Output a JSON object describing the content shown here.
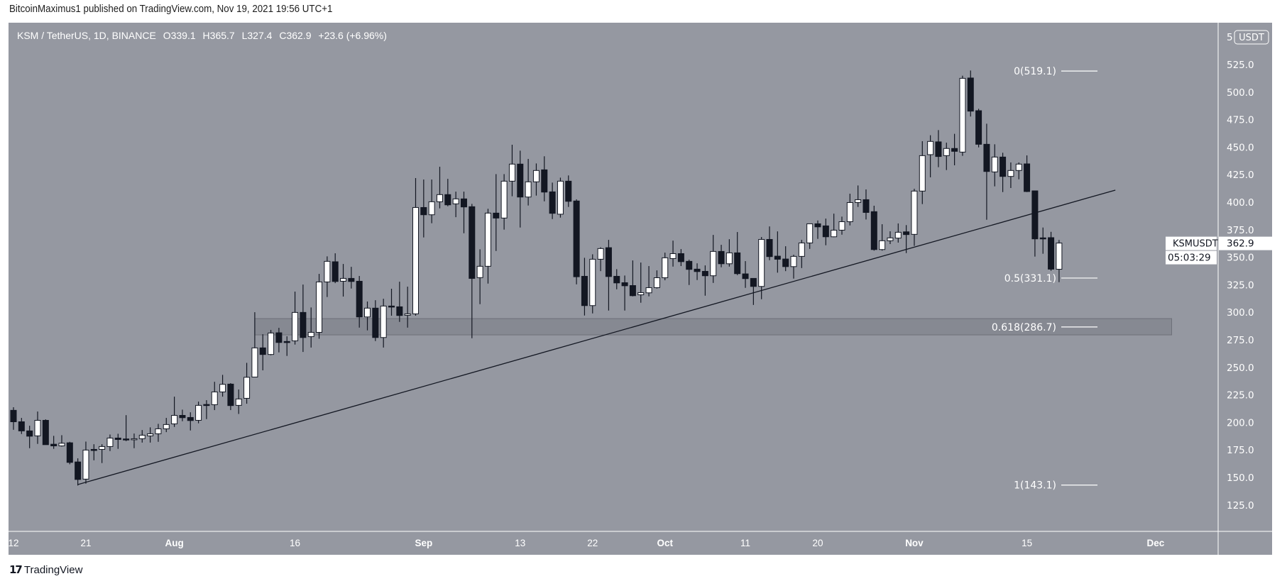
{
  "header": {
    "published": "BitcoinMaximus1 published on TradingView.com, Nov 19, 2021 19:56 UTC+1"
  },
  "legend": {
    "symbol": "KSM / TetherUS, 1D, BINANCE",
    "o_label": "O",
    "o": "339.1",
    "h_label": "H",
    "h": "365.7",
    "l_label": "L",
    "l": "327.4",
    "c_label": "C",
    "c": "362.9",
    "change": "+23.6 (+6.96%)"
  },
  "footer": {
    "brand": "TradingView",
    "logo_text": "17"
  },
  "colors": {
    "background": "#9598a1",
    "up_body": "#ffffff",
    "down_body": "#131722",
    "wick": "#131722",
    "zone": "#868992",
    "fib_line": "#ffffff",
    "trendline": "#131722"
  },
  "chart_data": {
    "type": "candlestick",
    "title": "KSM / TetherUS, 1D, BINANCE",
    "currency": "USDT",
    "ylim": [
      100,
      555
    ],
    "grid": false,
    "y_ticks": [
      "525.0",
      "500.0",
      "475.0",
      "450.0",
      "425.0",
      "400.0",
      "375.0",
      "350.0",
      "325.0",
      "300.0",
      "275.0",
      "250.0",
      "225.0",
      "200.0",
      "175.0",
      "150.0",
      "125.0"
    ],
    "y_top_partial": "5",
    "x_ticks": [
      {
        "label": "12",
        "date": "2021-07-12",
        "bold": false
      },
      {
        "label": "21",
        "date": "2021-07-21",
        "bold": false
      },
      {
        "label": "Aug",
        "date": "2021-08-01",
        "bold": true
      },
      {
        "label": "16",
        "date": "2021-08-16",
        "bold": false
      },
      {
        "label": "Sep",
        "date": "2021-09-01",
        "bold": true
      },
      {
        "label": "13",
        "date": "2021-09-13",
        "bold": false
      },
      {
        "label": "22",
        "date": "2021-09-22",
        "bold": false
      },
      {
        "label": "Oct",
        "date": "2021-10-01",
        "bold": true
      },
      {
        "label": "11",
        "date": "2021-10-11",
        "bold": false
      },
      {
        "label": "20",
        "date": "2021-10-20",
        "bold": false
      },
      {
        "label": "Nov",
        "date": "2021-11-01",
        "bold": true
      },
      {
        "label": "15",
        "date": "2021-11-15",
        "bold": false
      },
      {
        "label": "Dec",
        "date": "2021-12-01",
        "bold": true
      }
    ],
    "last_price": {
      "symbol": "KSMUSDT",
      "price": "362.9",
      "countdown": "05:03:29",
      "value": 362.9
    },
    "fib_levels": [
      {
        "label": "0(519.1)",
        "value": 519.1
      },
      {
        "label": "0.5(331.1)",
        "value": 331.1
      },
      {
        "label": "0.618(286.7)",
        "value": 286.7
      },
      {
        "label": "1(143.1)",
        "value": 143.1
      }
    ],
    "zone": {
      "from_date": "2021-08-11",
      "to_date": "2021-12-03",
      "low": 279.5,
      "high": 294.3
    },
    "trendline": {
      "start": {
        "date": "2021-07-20",
        "price": 143.6
      },
      "end": {
        "date": "2021-11-26",
        "price": 411.0
      }
    },
    "candles": [
      [
        "2021-07-12",
        211.0,
        213.8,
        193.3,
        200.6
      ],
      [
        "2021-07-13",
        200.6,
        204.1,
        189.5,
        192.3
      ],
      [
        "2021-07-14",
        192.3,
        197.0,
        176.6,
        187.5
      ],
      [
        "2021-07-15",
        187.8,
        209.9,
        180.5,
        201.9
      ],
      [
        "2021-07-16",
        201.9,
        202.8,
        179.8,
        179.8
      ],
      [
        "2021-07-17",
        180.2,
        187.8,
        176.0,
        178.7
      ],
      [
        "2021-07-18",
        178.7,
        188.4,
        178.1,
        181.1
      ],
      [
        "2021-07-19",
        181.5,
        182.4,
        162.0,
        163.7
      ],
      [
        "2021-07-20",
        164.1,
        167.4,
        142.7,
        148.2
      ],
      [
        "2021-07-21",
        148.5,
        182.6,
        144.4,
        174.9
      ],
      [
        "2021-07-22",
        175.5,
        180.2,
        165.6,
        174.7
      ],
      [
        "2021-07-23",
        175.5,
        180.2,
        163.1,
        178.1
      ],
      [
        "2021-07-24",
        178.1,
        189.0,
        174.0,
        185.8
      ],
      [
        "2021-07-25",
        185.8,
        189.7,
        176.0,
        184.5
      ],
      [
        "2021-07-26",
        185.0,
        206.6,
        183.0,
        184.5
      ],
      [
        "2021-07-27",
        184.7,
        189.9,
        176.6,
        185.2
      ],
      [
        "2021-07-28",
        185.2,
        193.1,
        181.7,
        188.4
      ],
      [
        "2021-07-29",
        187.8,
        195.5,
        181.7,
        189.7
      ],
      [
        "2021-07-30",
        189.7,
        198.7,
        182.4,
        194.2
      ],
      [
        "2021-07-31",
        194.2,
        204.1,
        191.2,
        198.1
      ],
      [
        "2021-08-01",
        198.7,
        223.4,
        195.9,
        206.4
      ],
      [
        "2021-08-02",
        206.4,
        211.6,
        201.1,
        204.3
      ],
      [
        "2021-08-03",
        204.5,
        209.2,
        192.7,
        201.7
      ],
      [
        "2021-08-04",
        201.9,
        218.9,
        199.2,
        215.5
      ],
      [
        "2021-08-05",
        216.3,
        220.2,
        203.0,
        215.5
      ],
      [
        "2021-08-06",
        216.1,
        236.9,
        211.2,
        227.7
      ],
      [
        "2021-08-07",
        227.7,
        243.2,
        223.4,
        234.6
      ],
      [
        "2021-08-08",
        234.8,
        235.7,
        211.2,
        215.3
      ],
      [
        "2021-08-09",
        215.5,
        229.9,
        207.7,
        221.3
      ],
      [
        "2021-08-10",
        221.9,
        254.1,
        217.0,
        241.0
      ],
      [
        "2021-08-11",
        241.2,
        300.1,
        241.2,
        267.7
      ],
      [
        "2021-08-12",
        267.7,
        280.1,
        247.3,
        261.7
      ],
      [
        "2021-08-13",
        261.7,
        284.0,
        261.0,
        281.2
      ],
      [
        "2021-08-14",
        281.4,
        285.9,
        263.6,
        272.6
      ],
      [
        "2021-08-15",
        273.5,
        278.2,
        260.4,
        272.6
      ],
      [
        "2021-08-16",
        274.1,
        318.8,
        270.7,
        299.9
      ],
      [
        "2021-08-17",
        299.9,
        325.2,
        264.0,
        277.1
      ],
      [
        "2021-08-18",
        277.9,
        304.4,
        268.0,
        281.8
      ],
      [
        "2021-08-19",
        281.8,
        334.9,
        276.0,
        327.6
      ],
      [
        "2021-08-20",
        327.6,
        350.8,
        313.9,
        346.3
      ],
      [
        "2021-08-21",
        345.9,
        353.6,
        326.5,
        328.0
      ],
      [
        "2021-08-22",
        328.2,
        343.9,
        314.3,
        330.8
      ],
      [
        "2021-08-23",
        330.8,
        341.3,
        321.6,
        328.0
      ],
      [
        "2021-08-24",
        328.2,
        333.0,
        286.1,
        295.8
      ],
      [
        "2021-08-25",
        295.8,
        309.8,
        283.6,
        303.8
      ],
      [
        "2021-08-26",
        303.8,
        311.0,
        273.9,
        277.1
      ],
      [
        "2021-08-27",
        277.1,
        312.3,
        268.0,
        305.7
      ],
      [
        "2021-08-28",
        305.7,
        321.4,
        296.9,
        304.8
      ],
      [
        "2021-08-29",
        305.0,
        327.8,
        291.3,
        297.1
      ],
      [
        "2021-08-30",
        297.3,
        323.3,
        286.1,
        298.6
      ],
      [
        "2021-08-31",
        298.6,
        421.9,
        296.9,
        395.2
      ],
      [
        "2021-09-01",
        395.2,
        420.6,
        368.0,
        388.6
      ],
      [
        "2021-09-02",
        388.6,
        420.6,
        380.9,
        400.4
      ],
      [
        "2021-09-03",
        400.4,
        432.2,
        394.4,
        406.9
      ],
      [
        "2021-09-04",
        406.9,
        421.2,
        396.3,
        397.6
      ],
      [
        "2021-09-05",
        398.5,
        409.6,
        386.4,
        403.0
      ],
      [
        "2021-09-06",
        403.0,
        409.6,
        371.8,
        395.7
      ],
      [
        "2021-09-07",
        395.9,
        398.5,
        276.5,
        330.8
      ],
      [
        "2021-09-08",
        331.5,
        357.2,
        307.4,
        341.8
      ],
      [
        "2021-09-09",
        341.8,
        394.0,
        326.1,
        390.1
      ],
      [
        "2021-09-10",
        390.1,
        425.5,
        355.7,
        385.6
      ],
      [
        "2021-09-11",
        385.6,
        425.5,
        375.1,
        419.1
      ],
      [
        "2021-09-12",
        419.1,
        452.2,
        405.4,
        434.6
      ],
      [
        "2021-09-13",
        434.6,
        446.8,
        377.0,
        404.7
      ],
      [
        "2021-09-14",
        404.7,
        439.3,
        397.0,
        418.5
      ],
      [
        "2021-09-15",
        418.5,
        435.2,
        406.0,
        428.8
      ],
      [
        "2021-09-16",
        429.4,
        441.7,
        400.8,
        409.2
      ],
      [
        "2021-09-17",
        409.4,
        417.8,
        384.7,
        389.9
      ],
      [
        "2021-09-18",
        389.1,
        422.3,
        386.0,
        419.1
      ],
      [
        "2021-09-19",
        419.1,
        424.3,
        395.7,
        400.8
      ],
      [
        "2021-09-20",
        401.1,
        402.6,
        325.4,
        332.3
      ],
      [
        "2021-09-21",
        332.7,
        349.5,
        297.1,
        306.1
      ],
      [
        "2021-09-22",
        306.1,
        352.7,
        299.0,
        348.2
      ],
      [
        "2021-09-23",
        348.2,
        359.1,
        337.4,
        357.9
      ],
      [
        "2021-09-24",
        358.7,
        365.8,
        301.6,
        332.5
      ],
      [
        "2021-09-25",
        332.7,
        339.2,
        320.9,
        326.7
      ],
      [
        "2021-09-26",
        326.9,
        333.4,
        301.6,
        324.1
      ],
      [
        "2021-09-27",
        324.3,
        347.1,
        314.5,
        315.1
      ],
      [
        "2021-09-28",
        315.9,
        345.2,
        308.7,
        317.9
      ],
      [
        "2021-09-29",
        317.7,
        342.0,
        314.5,
        322.4
      ],
      [
        "2021-09-30",
        322.4,
        338.1,
        321.6,
        331.4
      ],
      [
        "2021-10-01",
        331.4,
        354.2,
        329.1,
        349.5
      ],
      [
        "2021-10-02",
        348.8,
        365.1,
        341.5,
        353.3
      ],
      [
        "2021-10-03",
        353.3,
        357.4,
        342.0,
        346.0
      ],
      [
        "2021-10-04",
        346.3,
        347.8,
        324.8,
        339.0
      ],
      [
        "2021-10-05",
        339.2,
        344.5,
        329.3,
        337.0
      ],
      [
        "2021-10-06",
        337.2,
        342.6,
        315.1,
        333.2
      ],
      [
        "2021-10-07",
        333.2,
        370.3,
        326.7,
        355.3
      ],
      [
        "2021-10-08",
        355.3,
        361.3,
        340.9,
        344.1
      ],
      [
        "2021-10-09",
        344.1,
        366.4,
        341.5,
        354.0
      ],
      [
        "2021-10-10",
        354.0,
        372.9,
        333.8,
        335.1
      ],
      [
        "2021-10-11",
        334.9,
        346.5,
        322.2,
        330.6
      ],
      [
        "2021-10-12",
        330.8,
        330.8,
        306.7,
        323.5
      ],
      [
        "2021-10-13",
        323.5,
        368.4,
        311.9,
        366.2
      ],
      [
        "2021-10-14",
        366.2,
        378.0,
        347.3,
        350.6
      ],
      [
        "2021-10-15",
        351.0,
        373.5,
        336.0,
        348.2
      ],
      [
        "2021-10-16",
        348.4,
        360.0,
        337.4,
        341.5
      ],
      [
        "2021-10-17",
        341.5,
        352.3,
        330.6,
        350.8
      ],
      [
        "2021-10-18",
        350.8,
        365.8,
        340.2,
        363.0
      ],
      [
        "2021-10-19",
        363.0,
        380.4,
        357.6,
        380.4
      ],
      [
        "2021-10-20",
        380.4,
        383.4,
        366.7,
        377.6
      ],
      [
        "2021-10-21",
        378.5,
        385.1,
        360.9,
        368.6
      ],
      [
        "2021-10-22",
        368.6,
        389.6,
        368.2,
        374.6
      ],
      [
        "2021-10-23",
        374.6,
        386.9,
        370.5,
        382.3
      ],
      [
        "2021-10-24",
        382.3,
        407.7,
        378.9,
        399.7
      ],
      [
        "2021-10-25",
        399.7,
        415.2,
        395.7,
        402.3
      ],
      [
        "2021-10-26",
        402.3,
        411.6,
        384.3,
        390.7
      ],
      [
        "2021-10-27",
        391.4,
        396.8,
        356.0,
        357.0
      ],
      [
        "2021-10-28",
        357.0,
        380.0,
        356.0,
        365.0
      ],
      [
        "2021-10-29",
        365.0,
        373.6,
        362.0,
        367.6
      ],
      [
        "2021-10-30",
        367.4,
        380.7,
        363.3,
        372.7
      ],
      [
        "2021-10-31",
        373.1,
        379.2,
        353.8,
        370.6
      ],
      [
        "2021-11-01",
        370.8,
        412.2,
        360.3,
        410.1
      ],
      [
        "2021-11-02",
        410.1,
        455.4,
        398.3,
        442.3
      ],
      [
        "2021-11-03",
        443.2,
        460.8,
        422.6,
        455.2
      ],
      [
        "2021-11-04",
        454.8,
        465.5,
        431.8,
        441.5
      ],
      [
        "2021-11-05",
        442.3,
        454.1,
        429.2,
        448.8
      ],
      [
        "2021-11-06",
        448.8,
        462.1,
        433.5,
        446.2
      ],
      [
        "2021-11-07",
        445.5,
        514.9,
        442.1,
        512.5
      ],
      [
        "2021-11-08",
        512.8,
        519.6,
        477.8,
        482.7
      ],
      [
        "2021-11-09",
        483.1,
        484.8,
        449.8,
        452.6
      ],
      [
        "2021-11-10",
        452.6,
        471.3,
        384.1,
        427.9
      ],
      [
        "2021-11-11",
        427.5,
        452.6,
        414.4,
        441.0
      ],
      [
        "2021-11-12",
        441.0,
        444.9,
        409.2,
        423.4
      ],
      [
        "2021-11-13",
        423.4,
        436.1,
        412.9,
        428.8
      ],
      [
        "2021-11-14",
        428.8,
        436.1,
        420.8,
        434.6
      ],
      [
        "2021-11-15",
        434.8,
        442.5,
        409.2,
        409.7
      ],
      [
        "2021-11-16",
        410.3,
        410.3,
        350.6,
        366.7
      ],
      [
        "2021-11-17",
        367.6,
        377.0,
        353.2,
        366.7
      ],
      [
        "2021-11-18",
        367.8,
        373.1,
        337.7,
        339.2
      ],
      [
        "2021-11-19",
        339.1,
        365.7,
        327.4,
        362.9
      ]
    ]
  }
}
